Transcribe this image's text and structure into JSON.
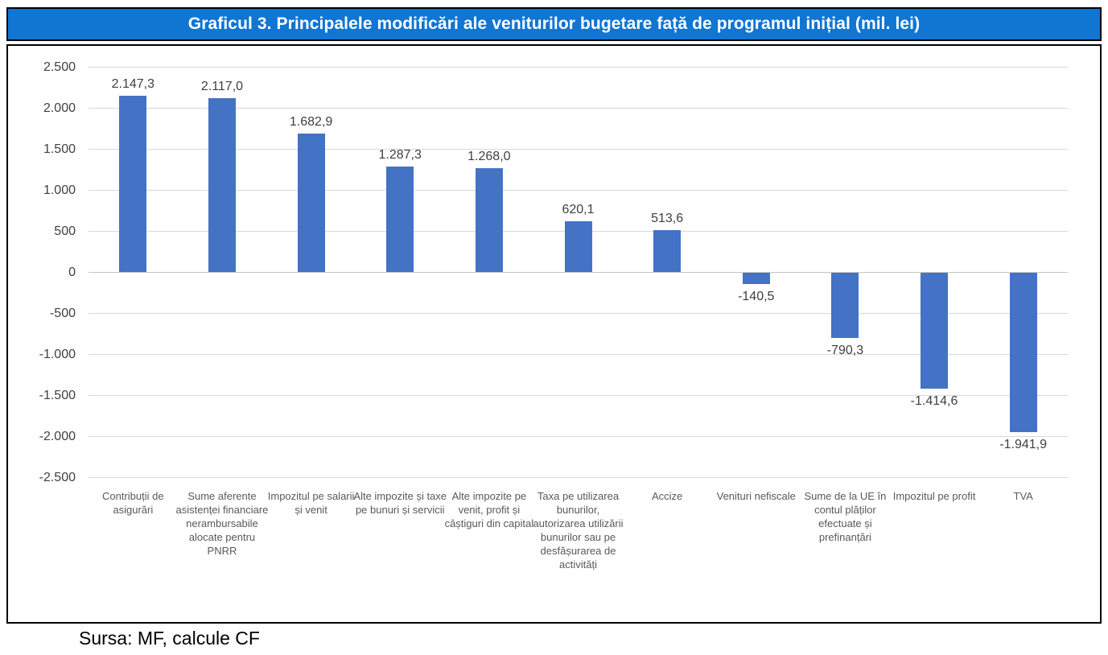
{
  "header": {
    "title": "Graficul 3. Principalele modificări ale veniturilor bugetare față de programul inițial (mil. lei)"
  },
  "source_note": "Sursa: MF, calcule CF",
  "colors": {
    "bar": "#4472C4",
    "header_bg": "#1175D2",
    "header_text": "#FFFFFF",
    "border": "#000000",
    "gridline": "#D9D9D9",
    "zero_line": "#C6C6C6",
    "tick_text": "#404040",
    "value_text": "#3F3F3F",
    "category_text": "#595959",
    "source_text": "#000000"
  },
  "chart_data": {
    "type": "bar",
    "title": "Graficul 3. Principalele modificări ale veniturilor bugetare față de programul inițial (mil. lei)",
    "unit": "mil. lei",
    "categories": [
      "Contribuții de asigurări",
      "Sume aferente asistenței financiare nerambursabile alocate pentru PNRR",
      "Impozitul pe salarii și venit",
      "Alte impozite și taxe pe bunuri și servicii",
      "Alte impozite pe venit, profit și câștiguri din capital",
      "Taxa pe utilizarea bunurilor, autorizarea utilizării bunurilor sau pe desfășurarea de activități",
      "Accize",
      "Venituri nefiscale",
      "Sume de la UE în contul plăților efectuate și prefinanțări",
      "Impozitul pe profit",
      "TVA"
    ],
    "values": [
      2147.3,
      2117.0,
      1682.9,
      1287.3,
      1268.0,
      620.1,
      513.6,
      -140.5,
      -790.3,
      -1414.6,
      -1941.9
    ],
    "value_labels": [
      "2.147,3",
      "2.117,0",
      "1.682,9",
      "1.287,3",
      "1.268,0",
      "620,1",
      "513,6",
      "-140,5",
      "-790,3",
      "-1.414,6",
      "-1.941,9"
    ],
    "ylim": [
      -2500,
      2500
    ],
    "yticks": [
      {
        "value": 2500,
        "label": "2.500"
      },
      {
        "value": 2000,
        "label": "2.000"
      },
      {
        "value": 1500,
        "label": "1.500"
      },
      {
        "value": 1000,
        "label": "1.000"
      },
      {
        "value": 500,
        "label": "500"
      },
      {
        "value": 0,
        "label": "0"
      },
      {
        "value": -500,
        "label": "-500"
      },
      {
        "value": -1000,
        "label": "-1.000"
      },
      {
        "value": -1500,
        "label": "-1.500"
      },
      {
        "value": -2000,
        "label": "-2.000"
      },
      {
        "value": -2500,
        "label": "-2.500"
      }
    ],
    "grid": true,
    "legend": false,
    "bar_orientation": "vertical"
  }
}
